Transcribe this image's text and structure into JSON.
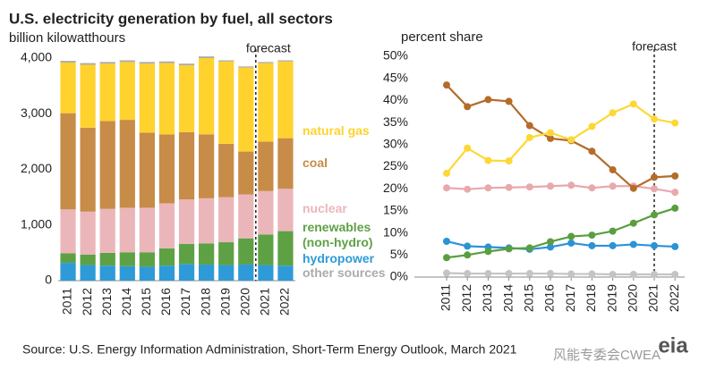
{
  "source": "Source: U.S. Energy Information Administration, Short-Term Energy Outlook, March 2021",
  "watermark": "风能专委会CWEA",
  "logo": "eia",
  "chart_data": [
    {
      "type": "bar",
      "stacked": true,
      "grid": false,
      "title": "U.S. electricity generation by fuel, all sectors",
      "subtitle": "billion kilowatthours",
      "annotation": "forecast",
      "categories": [
        "2011",
        "2012",
        "2013",
        "2014",
        "2015",
        "2016",
        "2017",
        "2018",
        "2019",
        "2020",
        "2021",
        "2022"
      ],
      "ylim": [
        0,
        4000
      ],
      "yticks": [
        0,
        {
          "value": 1000,
          "label": "1,000"
        },
        {
          "value": 2000,
          "label": "2,000"
        },
        {
          "value": 3000,
          "label": "3,000"
        },
        {
          "value": 4000,
          "label": "4,000"
        }
      ],
      "series": [
        {
          "name": "hydropower",
          "color": "#2e9bd8",
          "values": [
            320,
            280,
            270,
            260,
            250,
            270,
            300,
            290,
            280,
            290,
            280,
            270
          ]
        },
        {
          "name": "renewables (non-hydro)",
          "color": "#5ea144",
          "values": [
            170,
            190,
            230,
            250,
            260,
            310,
            360,
            380,
            410,
            470,
            550,
            620
          ]
        },
        {
          "name": "nuclear",
          "color": "#ebb6ba",
          "values": [
            790,
            770,
            790,
            800,
            800,
            810,
            800,
            810,
            810,
            790,
            780,
            760
          ]
        },
        {
          "name": "coal",
          "color": "#c78c48",
          "values": [
            1730,
            1510,
            1580,
            1580,
            1350,
            1240,
            1210,
            1150,
            960,
            770,
            890,
            910
          ]
        },
        {
          "name": "natural gas",
          "color": "#ffd22e",
          "values": [
            910,
            1130,
            1030,
            1040,
            1240,
            1280,
            1200,
            1370,
            1480,
            1510,
            1410,
            1380
          ]
        },
        {
          "name": "other sources",
          "color": "#ababab",
          "values": [
            30,
            30,
            30,
            30,
            30,
            30,
            30,
            30,
            20,
            20,
            20,
            20
          ]
        }
      ]
    },
    {
      "type": "line",
      "grid": false,
      "ylabel": "percent share",
      "annotation": "forecast",
      "categories": [
        "2011",
        "2012",
        "2013",
        "2014",
        "2015",
        "2016",
        "2017",
        "2018",
        "2019",
        "2020",
        "2021",
        "2022"
      ],
      "ylim": [
        0,
        50
      ],
      "yticks": [
        {
          "value": 0,
          "label": "0%"
        },
        {
          "value": 5,
          "label": "5%"
        },
        {
          "value": 10,
          "label": "10%"
        },
        {
          "value": 15,
          "label": "15%"
        },
        {
          "value": 20,
          "label": "20%"
        },
        {
          "value": 25,
          "label": "25%"
        },
        {
          "value": 30,
          "label": "30%"
        },
        {
          "value": 35,
          "label": "35%"
        },
        {
          "value": 40,
          "label": "40%"
        },
        {
          "value": 45,
          "label": "45%"
        },
        {
          "value": 50,
          "label": "50%"
        }
      ],
      "series": [
        {
          "color": "#2b92d6",
          "values": [
            8.1,
            7.0,
            6.8,
            6.6,
            6.3,
            6.8,
            7.7,
            7.1,
            7.1,
            7.4,
            7.1,
            6.9
          ]
        },
        {
          "color": "#5a9e3f",
          "values": [
            4.4,
            5.0,
            5.8,
            6.4,
            6.6,
            8.0,
            9.2,
            9.5,
            10.4,
            12.2,
            14.1,
            15.6
          ]
        },
        {
          "color": "#e8a9ad",
          "values": [
            20.2,
            19.9,
            20.2,
            20.3,
            20.4,
            20.6,
            20.8,
            20.2,
            20.6,
            20.6,
            20.0,
            19.2
          ]
        },
        {
          "color": "#b46c2b",
          "values": [
            43.5,
            38.6,
            40.2,
            39.8,
            34.3,
            31.4,
            30.9,
            28.5,
            24.3,
            20.1,
            22.6,
            22.9
          ]
        },
        {
          "color": "#fdd835",
          "values": [
            23.5,
            29.2,
            26.4,
            26.3,
            31.6,
            32.7,
            31.1,
            34.1,
            37.2,
            39.2,
            35.8,
            34.9
          ]
        },
        {
          "color": "#c4c4c4",
          "values": [
            0.9,
            0.8,
            0.8,
            0.8,
            0.8,
            0.8,
            0.7,
            0.7,
            0.6,
            0.6,
            0.6,
            0.6
          ]
        }
      ]
    }
  ]
}
